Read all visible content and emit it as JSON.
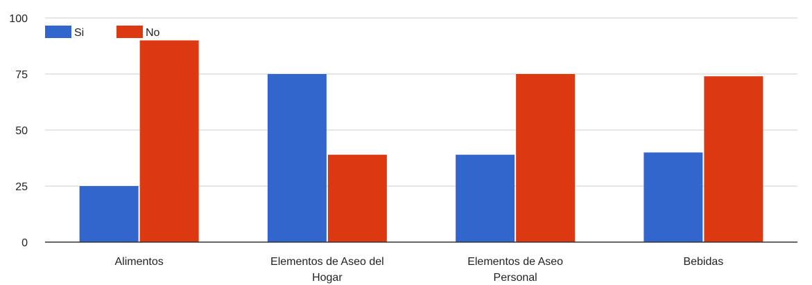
{
  "chart_data": {
    "type": "bar",
    "categories": [
      [
        "Alimentos"
      ],
      [
        "Elementos de Aseo del",
        "Hogar"
      ],
      [
        "Elementos de Aseo",
        "Personal"
      ],
      [
        "Bebidas"
      ]
    ],
    "series": [
      {
        "name": "Si",
        "color": "#3366cc",
        "values": [
          25,
          75,
          39,
          40
        ]
      },
      {
        "name": "No",
        "color": "#dc3912",
        "values": [
          90,
          39,
          75,
          74
        ]
      }
    ],
    "ylim": [
      0,
      100
    ],
    "yticks": [
      "0",
      "25",
      "50",
      "75",
      "100"
    ],
    "ytick_values": [
      0,
      25,
      50,
      75,
      100
    ],
    "grid": true,
    "legend_position": "top-left"
  }
}
